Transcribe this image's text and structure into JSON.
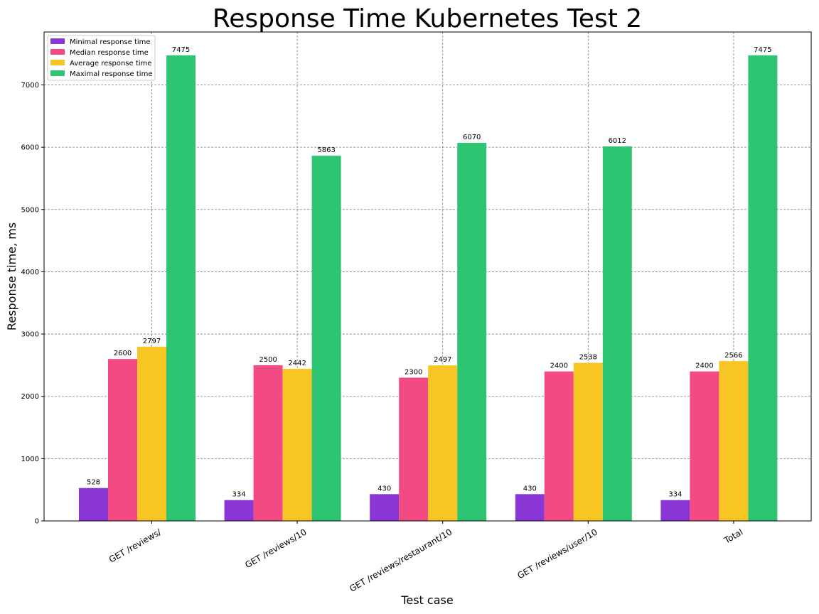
{
  "chart_data": {
    "type": "bar",
    "title": "Response Time Kubernetes Test 2",
    "xlabel": "Test case",
    "ylabel": "Response time, ms",
    "categories": [
      "GET /reviews/",
      "GET /reviews/10",
      "GET /reviews/restaurant/10",
      "GET /reviews/user/10",
      "Total"
    ],
    "series": [
      {
        "name": "Minimal response time",
        "color": "#8a35d6",
        "values": [
          528,
          334,
          430,
          430,
          334
        ]
      },
      {
        "name": "Median response time",
        "color": "#f24b84",
        "values": [
          2600,
          2500,
          2300,
          2400,
          2400
        ]
      },
      {
        "name": "Average response time",
        "color": "#f8c622",
        "values": [
          2797,
          2442,
          2497,
          2538,
          2566
        ]
      },
      {
        "name": "Maximal response time",
        "color": "#2ec572",
        "values": [
          7475,
          5863,
          6070,
          6012,
          7475
        ]
      }
    ],
    "ylim": [
      0,
      7850
    ],
    "yticks": [
      0,
      1000,
      2000,
      3000,
      4000,
      5000,
      6000,
      7000
    ],
    "grid": true,
    "legend_position": "top-left",
    "xtick_rotation": 30
  }
}
